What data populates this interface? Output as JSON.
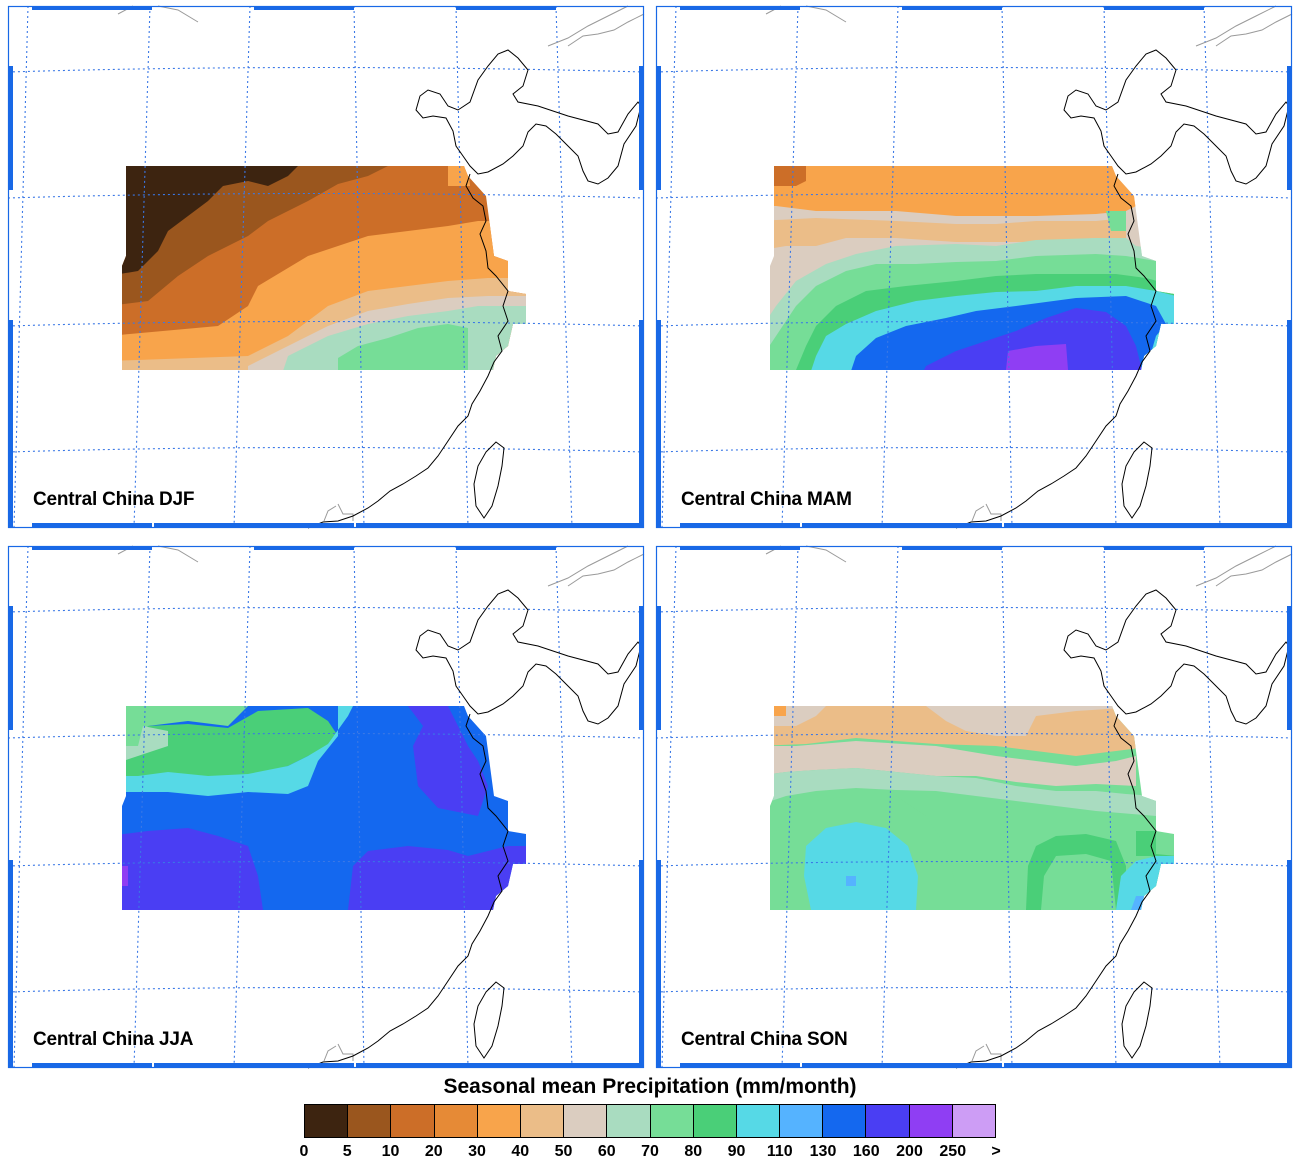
{
  "figure": {
    "panels": [
      {
        "label": "Central China DJF",
        "season": "DJF"
      },
      {
        "label": "Central China MAM",
        "season": "MAM"
      },
      {
        "label": "Central China JJA",
        "season": "JJA"
      },
      {
        "label": "Central China SON",
        "season": "SON"
      }
    ],
    "colorbar": {
      "title": "Seasonal mean Precipitation (mm/month)",
      "ticks": [
        "0",
        "5",
        "10",
        "20",
        "30",
        "40",
        "50",
        "60",
        "70",
        "80",
        "90",
        "110",
        "130",
        "160",
        "200",
        "250",
        ">"
      ],
      "colors": [
        "#3d2410",
        "#9a561e",
        "#cc6e28",
        "#e68a36",
        "#f8a44b",
        "#ebbd88",
        "#dbcdc0",
        "#a9dcc0",
        "#76dd97",
        "#4acf78",
        "#56d9e6",
        "#55b3ff",
        "#1468ef",
        "#4a3ef3",
        "#8f3ef3",
        "#cd9df5"
      ]
    }
  },
  "map_colors": {
    "frame_blue": "#1868e6",
    "grid_blue": "#3a78e6",
    "coast": "#000000",
    "border_gray": "#9a9a9a"
  }
}
